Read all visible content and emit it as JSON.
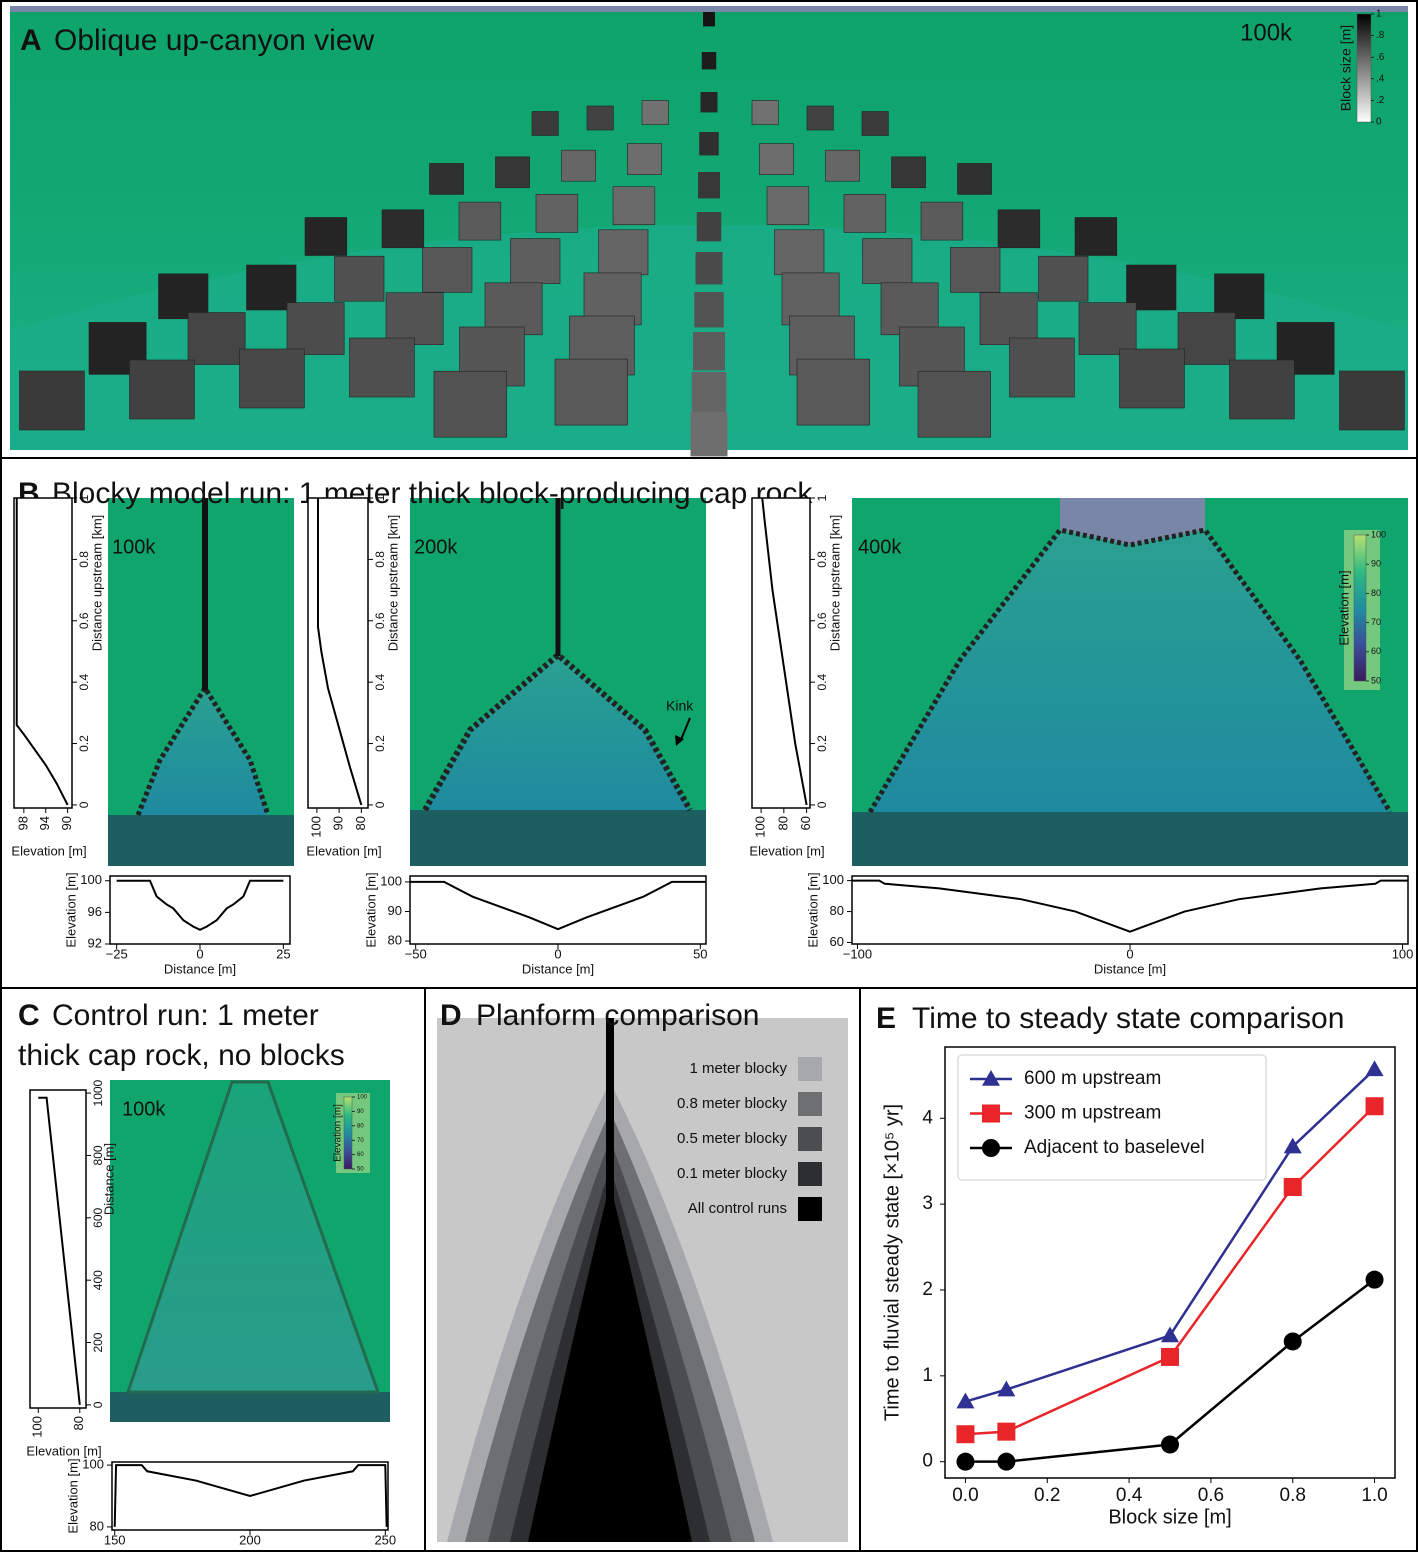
{
  "panels": {
    "A": {
      "letter": "A",
      "title": "Oblique up-canyon view",
      "time": "100k",
      "colorbar": {
        "label": "Block size [m]",
        "ticks": [
          0,
          {
            "value": 0.2,
            "label": ".2"
          },
          {
            "value": 0.4,
            "label": ".4"
          },
          {
            "value": 0.6,
            "label": ".6"
          },
          {
            "value": 0.8,
            "label": ".8"
          },
          1
        ]
      }
    },
    "B": {
      "letter": "B",
      "title": "Blocky model run: 1 meter thick block-producing cap rock",
      "maps": [
        {
          "time": "100k"
        },
        {
          "time": "200k",
          "annotation": "Kink"
        },
        {
          "time": "400k"
        }
      ],
      "colorbar": {
        "label": "Elevation [m]",
        "ticks": [
          50,
          60,
          70,
          80,
          90,
          100
        ]
      }
    },
    "C": {
      "letter": "C",
      "title_lines": [
        "Control run: 1 meter",
        "thick cap rock, no blocks"
      ],
      "time": "100k",
      "colorbar": {
        "label": "Elevation [m]",
        "ticks": [
          50,
          60,
          70,
          80,
          90,
          100
        ]
      }
    },
    "D": {
      "letter": "D",
      "title": "Planform comparison",
      "legend": [
        {
          "label": "1 meter blocky",
          "color": "#a6a8ab"
        },
        {
          "label": "0.8 meter blocky",
          "color": "#6d6f71"
        },
        {
          "label": "0.5 meter blocky",
          "color": "#4b4d4f"
        },
        {
          "label": "0.1 meter blocky",
          "color": "#2c2e2f"
        },
        {
          "label": "All control runs",
          "color": "#000000"
        }
      ]
    },
    "E": {
      "letter": "E",
      "title": "Time to steady state comparison"
    }
  },
  "chart_data": [
    {
      "type": "line",
      "xlabel": "Elevation [m]",
      "ylabel": "Distance upstream [km]",
      "x": [
        90,
        92,
        94,
        96,
        98,
        99.3,
        99.3
      ],
      "values": [
        0,
        0.07,
        0.13,
        0.18,
        0.23,
        0.26,
        1
      ],
      "xlim": [
        99.8,
        89.2
      ],
      "ylim": [
        -0.01,
        1
      ],
      "xticks": [
        98,
        94,
        90
      ],
      "yticks": [
        0,
        0.2,
        0.4,
        0.6,
        0.8,
        1
      ],
      "color": "#000000"
    },
    {
      "type": "line",
      "xlabel": "Distance [m]",
      "ylabel": "Elevation [m]",
      "x": [
        -25,
        -15,
        -13,
        -10,
        -8,
        -5,
        -2,
        0,
        2,
        5,
        8,
        10,
        13,
        15,
        25
      ],
      "values": [
        100,
        100,
        98,
        97,
        96.5,
        95,
        94.2,
        93.8,
        94.2,
        95,
        96.5,
        97,
        98,
        100,
        100
      ],
      "xlim": [
        -27,
        27
      ],
      "ylim": [
        92,
        100.6
      ],
      "xticks": [
        {
          "value": -25,
          "label": "−25"
        },
        0,
        25
      ],
      "yticks": [
        92,
        96,
        100
      ],
      "color": "#000000"
    },
    {
      "type": "line",
      "xlabel": "Elevation [m]",
      "ylabel": "Distance upstream [km]",
      "x": [
        80,
        85,
        90,
        95,
        98,
        99.5,
        99.5
      ],
      "values": [
        0,
        0.12,
        0.25,
        0.38,
        0.5,
        0.58,
        1
      ],
      "xlim": [
        104,
        77
      ],
      "ylim": [
        -0.01,
        1
      ],
      "xticks": [
        100,
        90,
        80
      ],
      "yticks": [
        0,
        0.2,
        0.4,
        0.6,
        0.8,
        1
      ],
      "color": "#000000"
    },
    {
      "type": "line",
      "xlabel": "Distance [m]",
      "ylabel": "Elevation [m]",
      "x": [
        -52,
        -40,
        -38,
        -30,
        -20,
        -10,
        0,
        10,
        20,
        30,
        38,
        40,
        52
      ],
      "values": [
        100,
        100,
        99,
        95,
        91.5,
        88,
        84,
        88,
        91.5,
        95,
        99,
        100,
        100
      ],
      "xlim": [
        -52,
        52
      ],
      "ylim": [
        79,
        102
      ],
      "xticks": [
        {
          "value": -50,
          "label": "−50"
        },
        0,
        50
      ],
      "yticks": [
        80,
        90,
        100
      ],
      "color": "#000000"
    },
    {
      "type": "line",
      "xlabel": "Elevation [m]",
      "ylabel": "Distance upstream [km]",
      "x": [
        60,
        70,
        80,
        90,
        97,
        99
      ],
      "values": [
        0,
        0.2,
        0.45,
        0.7,
        0.93,
        1
      ],
      "xlim": [
        108,
        57
      ],
      "ylim": [
        -0.01,
        1
      ],
      "xticks": [
        100,
        80,
        60
      ],
      "yticks": [
        0,
        0.2,
        0.4,
        0.6,
        0.8,
        1
      ],
      "color": "#000000"
    },
    {
      "type": "line",
      "xlabel": "Distance [m]",
      "ylabel": "Elevation [m]",
      "x": [
        -102,
        -92,
        -90,
        -70,
        -40,
        -20,
        0,
        20,
        40,
        70,
        90,
        92,
        102
      ],
      "values": [
        100,
        100,
        98,
        95,
        88,
        80,
        67,
        80,
        88,
        95,
        98,
        100,
        100
      ],
      "xlim": [
        -102,
        102
      ],
      "ylim": [
        59,
        103
      ],
      "xticks": [
        {
          "value": -100,
          "label": "−100"
        },
        0,
        100
      ],
      "yticks": [
        60,
        80,
        100
      ],
      "color": "#000000"
    },
    {
      "type": "line",
      "xlabel": "Elevation [m]",
      "ylabel": "Distance [m]",
      "x": [
        80,
        96,
        100
      ],
      "values": [
        0,
        985,
        985
      ],
      "xlim": [
        104,
        77
      ],
      "ylim": [
        -10,
        1010
      ],
      "xticks": [
        100,
        80
      ],
      "yticks": [
        0,
        200,
        400,
        600,
        800,
        1000
      ],
      "color": "#000000"
    },
    {
      "type": "line",
      "xlabel": "Distance [m]",
      "ylabel": "Elevation [m]",
      "x": [
        150,
        150.5,
        160,
        162,
        180,
        200,
        220,
        238,
        240,
        250,
        250.5
      ],
      "values": [
        80,
        100,
        100,
        98,
        95,
        90,
        95,
        98,
        100,
        100,
        80
      ],
      "xlim": [
        149,
        251
      ],
      "ylim": [
        79,
        101
      ],
      "xticks": [
        150,
        200,
        250
      ],
      "yticks": [
        80,
        100
      ],
      "color": "#000000"
    },
    {
      "type": "line",
      "xlabel": "Block size [m]",
      "ylabel": "Time to fluvial steady state [×10⁵ yr]",
      "x": [
        0,
        0.1,
        0.5,
        0.8,
        1
      ],
      "series": [
        {
          "name": "600 m upstream",
          "color": "#2e3192",
          "marker": "triangle",
          "values": [
            0.7,
            0.84,
            1.47,
            3.67,
            4.57
          ]
        },
        {
          "name": "300 m upstream",
          "color": "#e8262a",
          "marker": "square",
          "values": [
            0.32,
            0.35,
            1.22,
            3.2,
            4.14
          ]
        },
        {
          "name": "Adjacent to baselevel",
          "color": "#000000",
          "marker": "circle",
          "values": [
            0,
            0,
            0.2,
            1.4,
            2.12
          ]
        }
      ],
      "xlim": [
        -0.05,
        1.05
      ],
      "ylim": [
        -0.19,
        4.83
      ],
      "xticks": [
        {
          "value": 0,
          "label": "0.0"
        },
        0.2,
        0.4,
        0.6,
        0.8,
        {
          "value": 1,
          "label": "1.0"
        }
      ],
      "yticks": [
        0,
        1,
        2,
        3,
        4
      ],
      "legend": "upper left"
    }
  ]
}
